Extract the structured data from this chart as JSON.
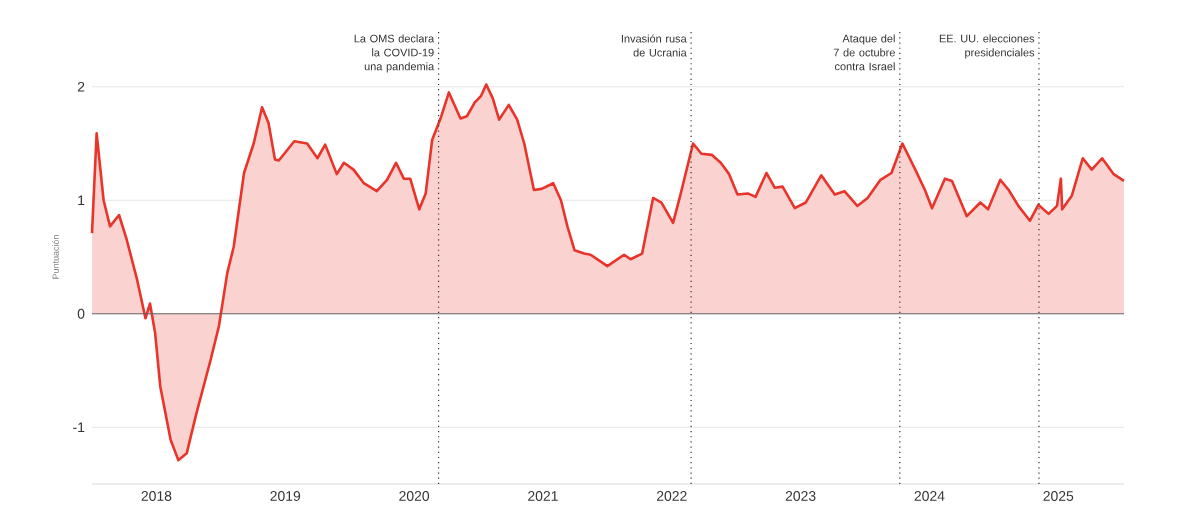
{
  "chart_data": {
    "type": "area",
    "ylabel": "Puntuación",
    "x": [
      2017.5,
      2017.536,
      2017.59,
      2017.64,
      2017.71,
      2017.77,
      2017.85,
      2017.915,
      2017.95,
      2017.99,
      2018.03,
      2018.11,
      2018.17,
      2018.235,
      2018.31,
      2018.42,
      2018.485,
      2018.55,
      2018.6,
      2018.68,
      2018.755,
      2018.82,
      2018.87,
      2018.92,
      2018.95,
      2019.07,
      2019.17,
      2019.25,
      2019.31,
      2019.4,
      2019.455,
      2019.53,
      2019.61,
      2019.71,
      2019.79,
      2019.86,
      2019.92,
      2019.97,
      2020.04,
      2020.09,
      2020.14,
      2020.205,
      2020.27,
      2020.36,
      2020.41,
      2020.47,
      2020.52,
      2020.56,
      2020.61,
      2020.66,
      2020.735,
      2020.8,
      2020.855,
      2020.93,
      2020.99,
      2021.08,
      2021.14,
      2021.19,
      2021.245,
      2021.32,
      2021.37,
      2021.5,
      2021.63,
      2021.68,
      2021.77,
      2021.855,
      2021.92,
      2022.01,
      2022.07,
      2022.165,
      2022.23,
      2022.31,
      2022.38,
      2022.445,
      2022.51,
      2022.59,
      2022.65,
      2022.735,
      2022.8,
      2022.86,
      2022.955,
      2023.04,
      2023.16,
      2023.265,
      2023.34,
      2023.44,
      2023.52,
      2023.62,
      2023.705,
      2023.79,
      2023.89,
      2023.965,
      2024.02,
      2024.12,
      2024.175,
      2024.29,
      2024.395,
      2024.455,
      2024.55,
      2024.615,
      2024.69,
      2024.78,
      2024.845,
      2024.925,
      2024.99,
      2025.02,
      2025.03,
      2025.105,
      2025.19,
      2025.26,
      2025.34,
      2025.43,
      2025.51
    ],
    "series": [
      {
        "color": "#e8342b",
        "values": [
          0.71,
          1.59,
          1.0,
          0.77,
          0.87,
          0.65,
          0.3,
          -0.04,
          0.09,
          -0.17,
          -0.64,
          -1.11,
          -1.29,
          -1.23,
          -0.88,
          -0.41,
          -0.11,
          0.36,
          0.59,
          1.24,
          1.5,
          1.82,
          1.68,
          1.36,
          1.35,
          1.52,
          1.5,
          1.37,
          1.49,
          1.23,
          1.33,
          1.27,
          1.15,
          1.08,
          1.18,
          1.33,
          1.19,
          1.19,
          0.92,
          1.06,
          1.53,
          1.72,
          1.95,
          1.72,
          1.74,
          1.86,
          1.92,
          2.02,
          1.9,
          1.71,
          1.84,
          1.71,
          1.5,
          1.09,
          1.1,
          1.15,
          1.0,
          0.77,
          0.56,
          0.53,
          0.52,
          0.42,
          0.52,
          0.48,
          0.53,
          1.02,
          0.98,
          0.8,
          1.06,
          1.5,
          1.41,
          1.4,
          1.33,
          1.23,
          1.05,
          1.06,
          1.03,
          1.24,
          1.11,
          1.12,
          0.93,
          0.98,
          1.22,
          1.05,
          1.08,
          0.95,
          1.02,
          1.18,
          1.24,
          1.5,
          1.27,
          1.09,
          0.93,
          1.19,
          1.17,
          0.86,
          0.98,
          0.92,
          1.18,
          1.09,
          0.95,
          0.82,
          0.96,
          0.88,
          0.95,
          1.19,
          0.92,
          1.04,
          1.37,
          1.27,
          1.37,
          1.23,
          1.17
        ]
      }
    ],
    "xlim": [
      2017.5,
      2025.51
    ],
    "ylim": [
      -1.5,
      2.5
    ],
    "xticks": [
      2018,
      2019,
      2020,
      2021,
      2022,
      2023,
      2024,
      2025
    ],
    "yticks": [
      -1,
      0,
      1,
      2
    ],
    "grid": "y",
    "ref_lines": [
      {
        "axis": "x",
        "value": 2020.19,
        "label": "La OMS declara la COVID-19 una pandemia",
        "color": "#333333",
        "line_style": "dotted"
      },
      {
        "axis": "x",
        "value": 2022.15,
        "label": "Invasión rusa de Ucrania",
        "color": "#333333",
        "line_style": "dotted"
      },
      {
        "axis": "x",
        "value": 2023.77,
        "label": "Ataque del 7 de octubre contra Israel",
        "color": "#333333",
        "line_style": "dotted"
      },
      {
        "axis": "x",
        "value": 2024.85,
        "label": "EE. UU. elecciones presidenciales",
        "color": "#333333",
        "line_style": "dotted"
      }
    ]
  }
}
